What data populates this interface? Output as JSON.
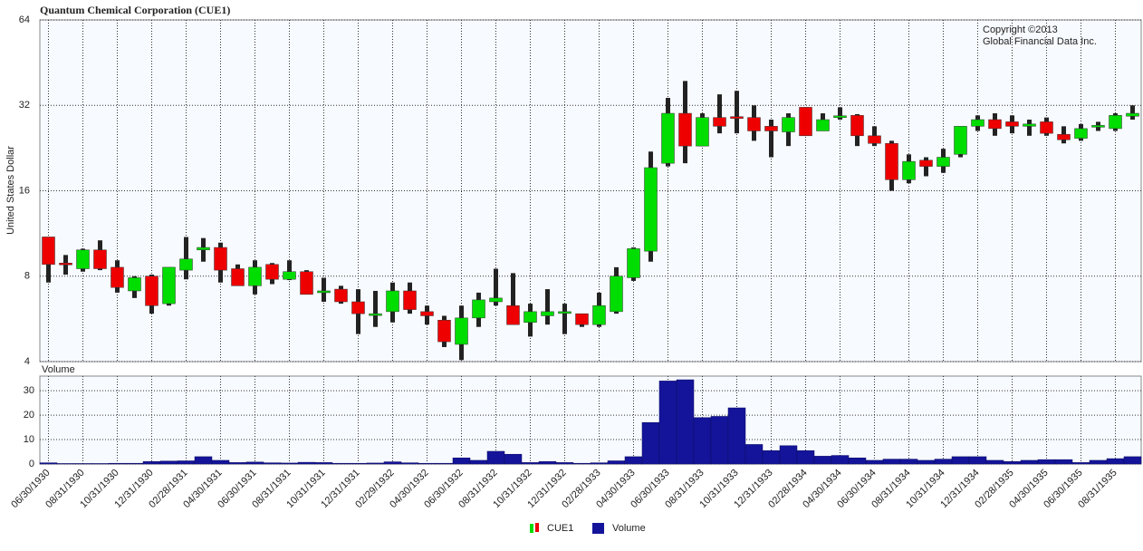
{
  "chart_data": [
    {
      "type": "candlestick",
      "title": "Quantum Chemical Corporation (CUE1)",
      "y_label": "United States Dollar",
      "annotations": [
        "Copyright ©2013",
        "Global Financial Data Inc."
      ],
      "log_scale": true,
      "grid": true,
      "ylim": [
        4,
        64
      ],
      "yticks": [
        4,
        8,
        16,
        32,
        64
      ],
      "up_color": "#00dd00",
      "down_color": "#ee0000",
      "wick_color": "#222222",
      "series": [
        {
          "name": "CUE1",
          "open": [
            11,
            8.9,
            8.5,
            9.9,
            8.6,
            7.1,
            8.0,
            6.4,
            8.4,
            9.9,
            10.1,
            8.5,
            7.4,
            8.8,
            7.8,
            8.3,
            7.0,
            7.2,
            6.5,
            5.9,
            6.0,
            7.1,
            6.0,
            5.6,
            4.6,
            5.7,
            6.5,
            6.3,
            5.5,
            5.8,
            6.0,
            5.9,
            5.4,
            6.0,
            7.9,
            9.8,
            20,
            30,
            23,
            29,
            29.2,
            29,
            27,
            25.8,
            31.5,
            26,
            29,
            29.5,
            25,
            23.5,
            17.5,
            20.5,
            19.5,
            21.5,
            27,
            28.5,
            28,
            27,
            28,
            25.3,
            24.5,
            26.8,
            26.5,
            29.3
          ],
          "high": [
            11,
            9.5,
            10.0,
            10.7,
            9.1,
            8.0,
            8.1,
            8.6,
            11.0,
            10.9,
            10.5,
            8.8,
            9.1,
            8.9,
            9.1,
            8.4,
            7.9,
            7.4,
            7.2,
            7.1,
            7.6,
            7.6,
            6.3,
            5.8,
            6.3,
            7.0,
            8.5,
            8.2,
            6.4,
            7.2,
            6.4,
            5.9,
            7.0,
            8.6,
            10.1,
            22,
            34,
            39,
            30,
            35,
            36,
            32,
            28.5,
            30,
            31.5,
            30,
            31.5,
            29.8,
            27,
            24,
            21.5,
            21,
            22.5,
            27,
            29.5,
            30,
            29.5,
            28.5,
            29,
            27,
            27.5,
            28,
            30,
            32
          ],
          "low": [
            7.6,
            8.1,
            8.3,
            8.4,
            7.0,
            6.7,
            5.9,
            6.3,
            7.8,
            9.0,
            7.6,
            7.4,
            6.9,
            7.5,
            7.75,
            6.9,
            6.5,
            6.4,
            5.0,
            5.3,
            5.5,
            5.9,
            5.4,
            4.5,
            4.05,
            5.3,
            6.3,
            5.4,
            4.9,
            5.4,
            5.0,
            5.3,
            5.3,
            5.9,
            7.7,
            9.0,
            19.5,
            20,
            23,
            25.5,
            25.5,
            24,
            21,
            23,
            25,
            26,
            28.5,
            23,
            23,
            16,
            17,
            18,
            18.5,
            21,
            26,
            25,
            25.5,
            25,
            25,
            23.5,
            24,
            26,
            26,
            28.5
          ],
          "close": [
            8.8,
            8.8,
            9.9,
            8.5,
            7.3,
            7.9,
            6.3,
            8.6,
            9.2,
            10.1,
            8.4,
            7.4,
            8.6,
            7.8,
            8.3,
            6.9,
            7.1,
            6.5,
            5.9,
            5.9,
            7.1,
            6.1,
            5.8,
            4.7,
            5.7,
            6.6,
            6.7,
            5.4,
            6.0,
            6.0,
            6.0,
            5.4,
            6.3,
            8.0,
            10.0,
            19.3,
            30,
            23,
            29,
            27,
            28.8,
            26,
            26,
            29,
            25,
            28.5,
            29.4,
            25,
            23.5,
            17.5,
            20.3,
            19.5,
            21,
            27,
            28.5,
            26.5,
            27,
            27.5,
            25.5,
            24.2,
            26.5,
            27.2,
            29.5,
            30
          ]
        }
      ]
    },
    {
      "type": "bar",
      "title": "Volume",
      "legend": "bottom",
      "grid": true,
      "ylim": [
        0,
        36
      ],
      "yticks": [
        0,
        10,
        20,
        30
      ],
      "categories": [
        "06/30/1930",
        null,
        "08/31/1930",
        null,
        "10/31/1930",
        null,
        "12/31/1930",
        null,
        "02/28/1931",
        null,
        "04/30/1931",
        null,
        "06/30/1931",
        null,
        "08/31/1931",
        null,
        "10/31/1931",
        null,
        "12/31/1931",
        null,
        "02/29/1932",
        null,
        "04/30/1932",
        null,
        "06/30/1932",
        null,
        "08/31/1932",
        null,
        "10/31/1932",
        null,
        "12/31/1932",
        null,
        "02/28/1933",
        null,
        "04/30/1933",
        null,
        "06/30/1933",
        null,
        "08/31/1933",
        null,
        "10/31/1933",
        null,
        "12/31/1933",
        null,
        "02/28/1934",
        null,
        "04/30/1934",
        null,
        "06/30/1934",
        null,
        "08/31/1934",
        null,
        "10/31/1934",
        null,
        "12/31/1934",
        null,
        "02/28/1935",
        null,
        "04/30/1935",
        null,
        "06/30/1935",
        null,
        "08/31/1935",
        null
      ],
      "series": [
        {
          "name": "Volume",
          "color": "#14149a",
          "values": [
            0.5,
            0.2,
            0.2,
            0.2,
            0.3,
            0.3,
            1,
            1.2,
            1.3,
            3,
            1.5,
            0.6,
            0.8,
            0.5,
            0.4,
            0.7,
            0.6,
            0.3,
            0.3,
            0.4,
            0.9,
            0.5,
            0.3,
            0.3,
            2.5,
            1.5,
            5.2,
            4,
            0.6,
            1,
            0.6,
            0.3,
            0.5,
            1.3,
            3,
            17,
            34,
            34.5,
            19,
            19.5,
            23,
            8,
            5.5,
            7.5,
            5.5,
            3.2,
            3.5,
            2.5,
            1.5,
            2,
            2,
            1.5,
            2,
            3,
            3,
            1.5,
            1,
            1.5,
            1.8,
            1.8,
            0.6,
            1.5,
            2.2,
            3
          ]
        }
      ]
    }
  ]
}
